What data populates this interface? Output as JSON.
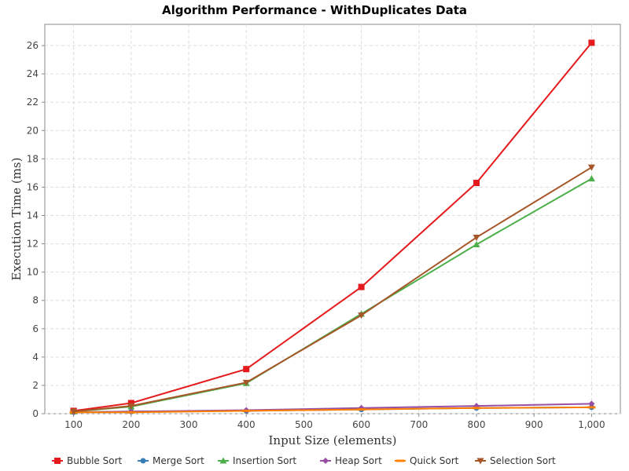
{
  "chart_data": {
    "type": "line",
    "title": "Algorithm Performance - WithDuplicates Data",
    "xlabel": "Input Size (elements)",
    "ylabel": "Execution Time (ms)",
    "xlim": [
      50,
      1050
    ],
    "ylim": [
      0,
      27.5
    ],
    "x_ticks": [
      100,
      200,
      300,
      400,
      500,
      600,
      700,
      800,
      900,
      1000
    ],
    "x_tick_labels": [
      "100",
      "200",
      "300",
      "400",
      "500",
      "600",
      "700",
      "800",
      "900",
      "1,000"
    ],
    "y_ticks": [
      0,
      2,
      4,
      6,
      8,
      10,
      12,
      14,
      16,
      18,
      20,
      22,
      24,
      26
    ],
    "y_tick_labels": [
      "0",
      "2",
      "4",
      "6",
      "8",
      "10",
      "12",
      "14",
      "16",
      "18",
      "20",
      "22",
      "24",
      "26"
    ],
    "grid": true,
    "legend_position": "bottom",
    "x": [
      100,
      200,
      400,
      600,
      800,
      1000
    ],
    "series": [
      {
        "name": "Bubble Sort",
        "color": "#e41a1c",
        "marker": "square",
        "values": [
          0.2,
          0.75,
          3.15,
          8.95,
          16.3,
          26.2
        ]
      },
      {
        "name": "Merge Sort",
        "color": "#377eb8",
        "marker": "circle",
        "values": [
          0.1,
          0.15,
          0.2,
          0.3,
          0.4,
          0.45
        ]
      },
      {
        "name": "Insertion Sort",
        "color": "#4daf4a",
        "marker": "triangle-up",
        "values": [
          0.15,
          0.5,
          2.15,
          7.05,
          11.95,
          16.6
        ]
      },
      {
        "name": "Heap Sort",
        "color": "#984ea3",
        "marker": "diamond",
        "values": [
          0.1,
          0.15,
          0.25,
          0.4,
          0.55,
          0.7
        ]
      },
      {
        "name": "Quick Sort",
        "color": "#ff7f00",
        "marker": "rect",
        "values": [
          0.1,
          0.1,
          0.2,
          0.3,
          0.4,
          0.45
        ]
      },
      {
        "name": "Selection Sort",
        "color": "#a65628",
        "marker": "triangle-down",
        "values": [
          0.15,
          0.55,
          2.2,
          6.95,
          12.45,
          17.4
        ]
      }
    ]
  }
}
